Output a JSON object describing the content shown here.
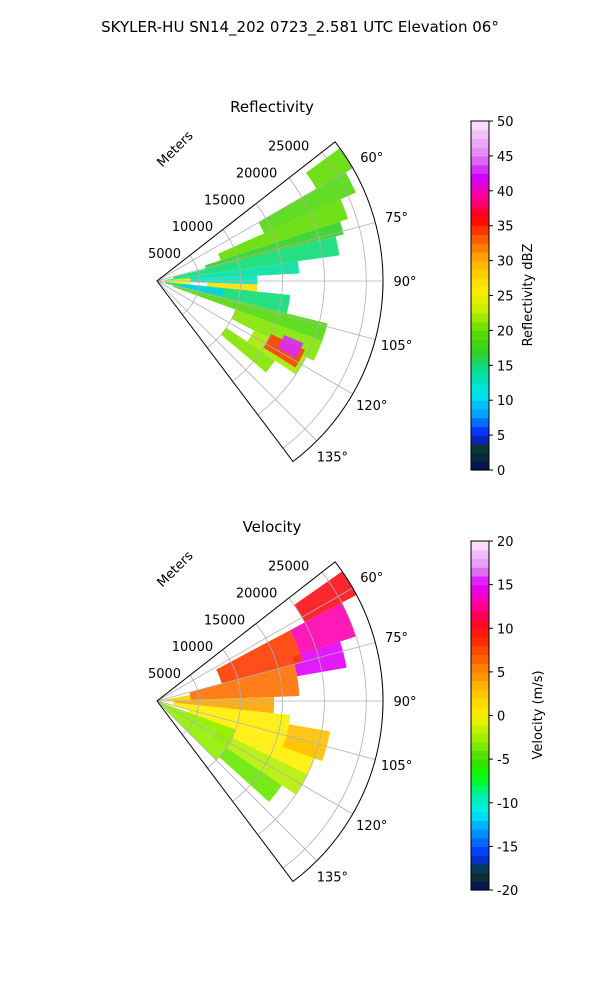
{
  "suptitle": "SKYLER-HU  SN14_202  0723_2.581 UTC Elevation 06°",
  "panels": [
    {
      "title": "Reflectivity",
      "range_axis_label": "Meters",
      "range_ticks": [
        "5000",
        "10000",
        "15000",
        "20000",
        "25000"
      ],
      "azimuth_ticks": [
        "60°",
        "75°",
        "90°",
        "105°",
        "120°",
        "135°"
      ],
      "colorbar": {
        "label": "Reflectivity dBZ",
        "min": 0,
        "max": 50,
        "ticks": [
          "0",
          "5",
          "10",
          "15",
          "20",
          "25",
          "30",
          "35",
          "40",
          "45",
          "50"
        ]
      }
    },
    {
      "title": "Velocity",
      "range_axis_label": "Meters",
      "range_ticks": [
        "5000",
        "10000",
        "15000",
        "20000",
        "25000"
      ],
      "azimuth_ticks": [
        "60°",
        "75°",
        "90°",
        "105°",
        "120°",
        "135°"
      ],
      "colorbar": {
        "label": "Velocity (m/s)",
        "min": -20,
        "max": 20,
        "ticks": [
          "-20",
          "-15",
          "-10",
          "-5",
          "0",
          "5",
          "10",
          "15",
          "20"
        ]
      }
    }
  ],
  "chart_data": [
    {
      "type": "heatmap",
      "title": "Reflectivity",
      "projection": "polar-sector",
      "azimuth_range_deg": [
        52,
        143
      ],
      "range_max_m": 27000,
      "range_ticks_m": [
        5000,
        10000,
        15000,
        20000,
        25000
      ],
      "azimuth_ticks_deg": [
        60,
        75,
        90,
        105,
        120,
        135
      ],
      "units": "dBZ",
      "value_range": [
        0,
        50
      ],
      "cells": [
        {
          "az": [
            54,
            60
          ],
          "r": [
            22000,
            27000
          ],
          "v": 20
        },
        {
          "az": [
            60,
            66
          ],
          "r": [
            14000,
            26000
          ],
          "v": 19
        },
        {
          "az": [
            66,
            72
          ],
          "r": [
            8000,
            24000
          ],
          "v": 20
        },
        {
          "az": [
            72,
            76
          ],
          "r": [
            6000,
            23000
          ],
          "v": 17
        },
        {
          "az": [
            76,
            82
          ],
          "r": [
            2000,
            22000
          ],
          "v": 15
        },
        {
          "az": [
            82,
            87
          ],
          "r": [
            1000,
            17000
          ],
          "v": 14
        },
        {
          "az": [
            87,
            92
          ],
          "r": [
            500,
            12000
          ],
          "v": 13
        },
        {
          "az": [
            92,
            96
          ],
          "r": [
            6000,
            12000
          ],
          "v": 27
        },
        {
          "az": [
            96,
            104
          ],
          "r": [
            1000,
            16000
          ],
          "v": 15
        },
        {
          "az": [
            104,
            110
          ],
          "r": [
            2000,
            21000
          ],
          "v": 19
        },
        {
          "az": [
            110,
            117
          ],
          "r": [
            10000,
            21000
          ],
          "v": 21
        },
        {
          "az": [
            117,
            124
          ],
          "r": [
            13000,
            20000
          ],
          "v": 22
        },
        {
          "az": [
            115,
            122
          ],
          "r": [
            15000,
            19500
          ],
          "v": 34
        },
        {
          "az": [
            113,
            119
          ],
          "r": [
            16500,
            19000
          ],
          "v": 43
        },
        {
          "az": [
            124,
            130
          ],
          "r": [
            10000,
            17000
          ],
          "v": 21
        },
        {
          "az": [
            85,
            95
          ],
          "r": [
            0,
            4000
          ],
          "v": 26
        },
        {
          "az": [
            97,
            103
          ],
          "r": [
            3000,
            8000
          ],
          "v": 10
        }
      ]
    },
    {
      "type": "heatmap",
      "title": "Velocity",
      "projection": "polar-sector",
      "azimuth_range_deg": [
        52,
        143
      ],
      "range_max_m": 27000,
      "range_ticks_m": [
        5000,
        10000,
        15000,
        20000,
        25000
      ],
      "azimuth_ticks_deg": [
        60,
        75,
        90,
        105,
        120,
        135
      ],
      "units": "m/s",
      "value_range": [
        -20,
        20
      ],
      "cells": [
        {
          "az": [
            55,
            62
          ],
          "r": [
            20000,
            27000
          ],
          "v": 10
        },
        {
          "az": [
            62,
            72
          ],
          "r": [
            18000,
            25000
          ],
          "v": 13
        },
        {
          "az": [
            72,
            80
          ],
          "r": [
            17000,
            23000
          ],
          "v": 15
        },
        {
          "az": [
            62,
            75
          ],
          "r": [
            8000,
            18000
          ],
          "v": 8
        },
        {
          "az": [
            75,
            88
          ],
          "r": [
            4000,
            17000
          ],
          "v": 6
        },
        {
          "az": [
            88,
            96
          ],
          "r": [
            2000,
            14000
          ],
          "v": 4
        },
        {
          "az": [
            96,
            106
          ],
          "r": [
            2000,
            16000
          ],
          "v": 0
        },
        {
          "az": [
            106,
            116
          ],
          "r": [
            4000,
            20000
          ],
          "v": 0
        },
        {
          "az": [
            116,
            124
          ],
          "r": [
            8000,
            20000
          ],
          "v": -2
        },
        {
          "az": [
            124,
            132
          ],
          "r": [
            10000,
            18000
          ],
          "v": -4
        },
        {
          "az": [
            110,
            135
          ],
          "r": [
            0,
            10000
          ],
          "v": -3
        },
        {
          "az": [
            100,
            110
          ],
          "r": [
            16000,
            21000
          ],
          "v": 3
        },
        {
          "az": [
            80,
            90
          ],
          "r": [
            0,
            4000
          ],
          "v": 2
        }
      ]
    }
  ]
}
